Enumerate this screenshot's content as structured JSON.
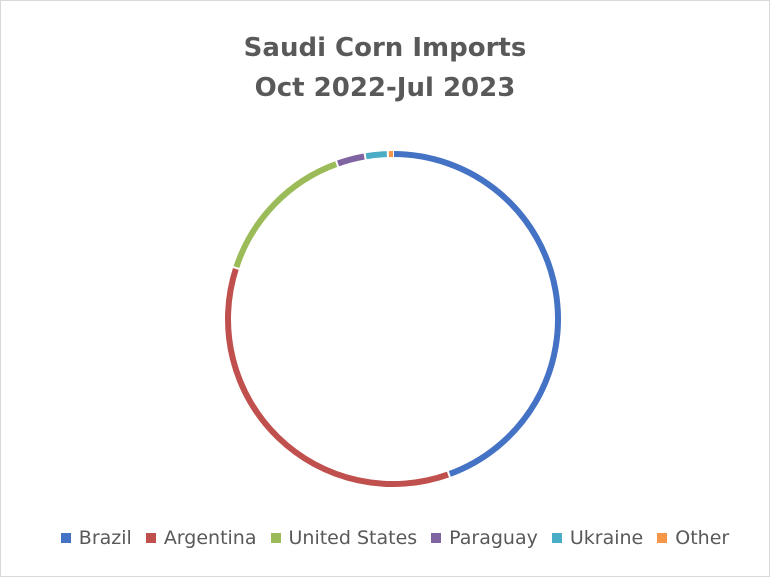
{
  "chart_data": {
    "type": "pie",
    "title_lines": [
      "Saudi Corn Imports",
      "Oct 2022-Jul 2023"
    ],
    "categories": [
      "Brazil",
      "Argentina",
      "United States",
      "Paraguay",
      "Ukraine",
      "Other"
    ],
    "values": [
      44.5,
      35.5,
      14.5,
      2.8,
      2.2,
      0.5
    ],
    "unit": "%",
    "colors": [
      "#4472c4",
      "#c0504d",
      "#9bbb59",
      "#8064a2",
      "#4bacc6",
      "#f79646"
    ],
    "legend_position": "bottom",
    "style": "donut"
  }
}
